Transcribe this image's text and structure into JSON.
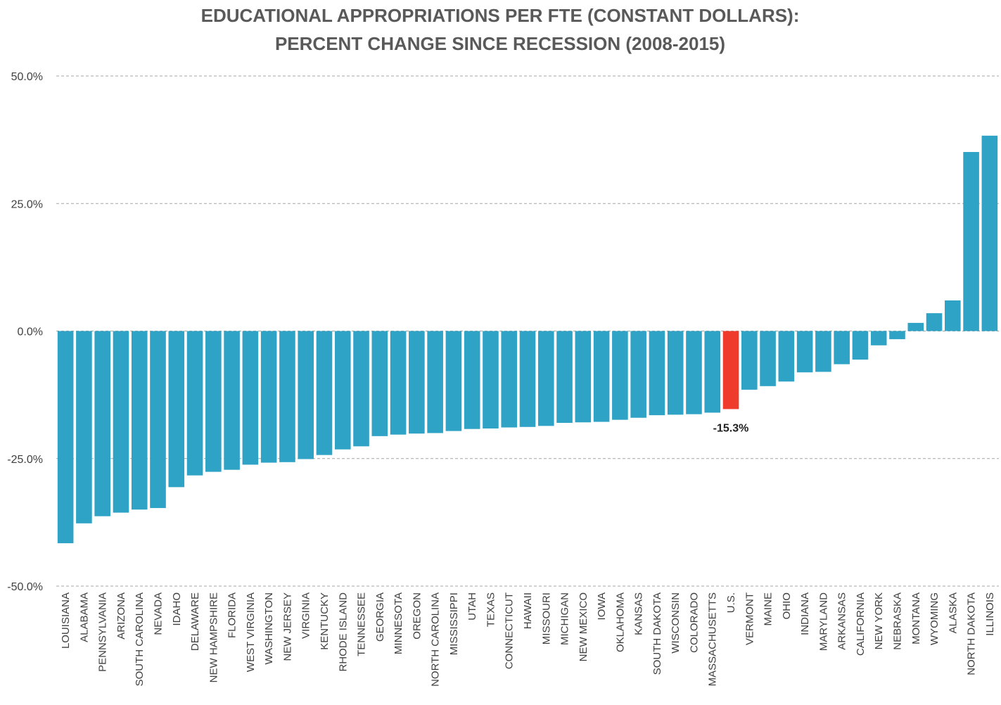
{
  "chart_data": {
    "type": "bar",
    "title_lines": [
      "EDUCATIONAL APPROPRIATIONS PER FTE (CONSTANT DOLLARS):",
      "PERCENT CHANGE SINCE RECESSION (2008-2015)"
    ],
    "ylim": [
      -50,
      50
    ],
    "yticks": [
      50,
      25,
      0,
      -25,
      -50
    ],
    "ytick_labels": [
      "50.0%",
      "25.0%",
      "0.0%",
      "-25.0%",
      "-50.0%"
    ],
    "grid": "horizontal dashed",
    "colors": {
      "bar": "#2EA3C6",
      "highlight": "#EE3B2B",
      "grid": "#A6A6A6"
    },
    "highlight_category": "U.S.",
    "categories": [
      "LOUISIANA",
      "ALABAMA",
      "PENNSYLVANIA",
      "ARIZONA",
      "SOUTH CAROLINA",
      "NEVADA",
      "IDAHO",
      "DELAWARE",
      "NEW HAMPSHIRE",
      "FLORIDA",
      "WEST VIRGINIA",
      "WASHINGTON",
      "NEW JERSEY",
      "VIRGINIA",
      "KENTUCKY",
      "RHODE ISLAND",
      "TENNESSEE",
      "GEORGIA",
      "MINNESOTA",
      "OREGON",
      "NORTH CAROLINA",
      "MISSISSIPPI",
      "UTAH",
      "TEXAS",
      "CONNECTICUT",
      "HAWAII",
      "MISSOURI",
      "MICHIGAN",
      "NEW MEXICO",
      "IOWA",
      "OKLAHOMA",
      "KANSAS",
      "SOUTH DAKOTA",
      "WISCONSIN",
      "COLORADO",
      "MASSACHUSETTS",
      "U.S.",
      "VERMONT",
      "MAINE",
      "OHIO",
      "INDIANA",
      "MARYLAND",
      "ARKANSAS",
      "CALIFORNIA",
      "NEW YORK",
      "NEBRASKA",
      "MONTANA",
      "WYOMING",
      "ALASKA",
      "NORTH DAKOTA",
      "ILLINOIS"
    ],
    "values": [
      -41.6,
      -37.7,
      -36.3,
      -35.6,
      -35.0,
      -34.7,
      -30.6,
      -28.3,
      -27.6,
      -27.2,
      -26.2,
      -25.8,
      -25.7,
      -25.1,
      -24.3,
      -23.2,
      -22.6,
      -20.6,
      -20.3,
      -20.1,
      -20.0,
      -19.6,
      -19.2,
      -19.1,
      -18.9,
      -18.8,
      -18.6,
      -18.0,
      -17.9,
      -17.8,
      -17.4,
      -17.0,
      -16.5,
      -16.4,
      -16.3,
      -16.0,
      -15.3,
      -11.5,
      -10.8,
      -9.9,
      -8.1,
      -8.0,
      -6.5,
      -5.6,
      -2.8,
      -1.6,
      1.6,
      3.5,
      6.0,
      35.1,
      38.3
    ],
    "data_labels": [
      {
        "category": "U.S.",
        "text": "-15.3%"
      }
    ]
  }
}
